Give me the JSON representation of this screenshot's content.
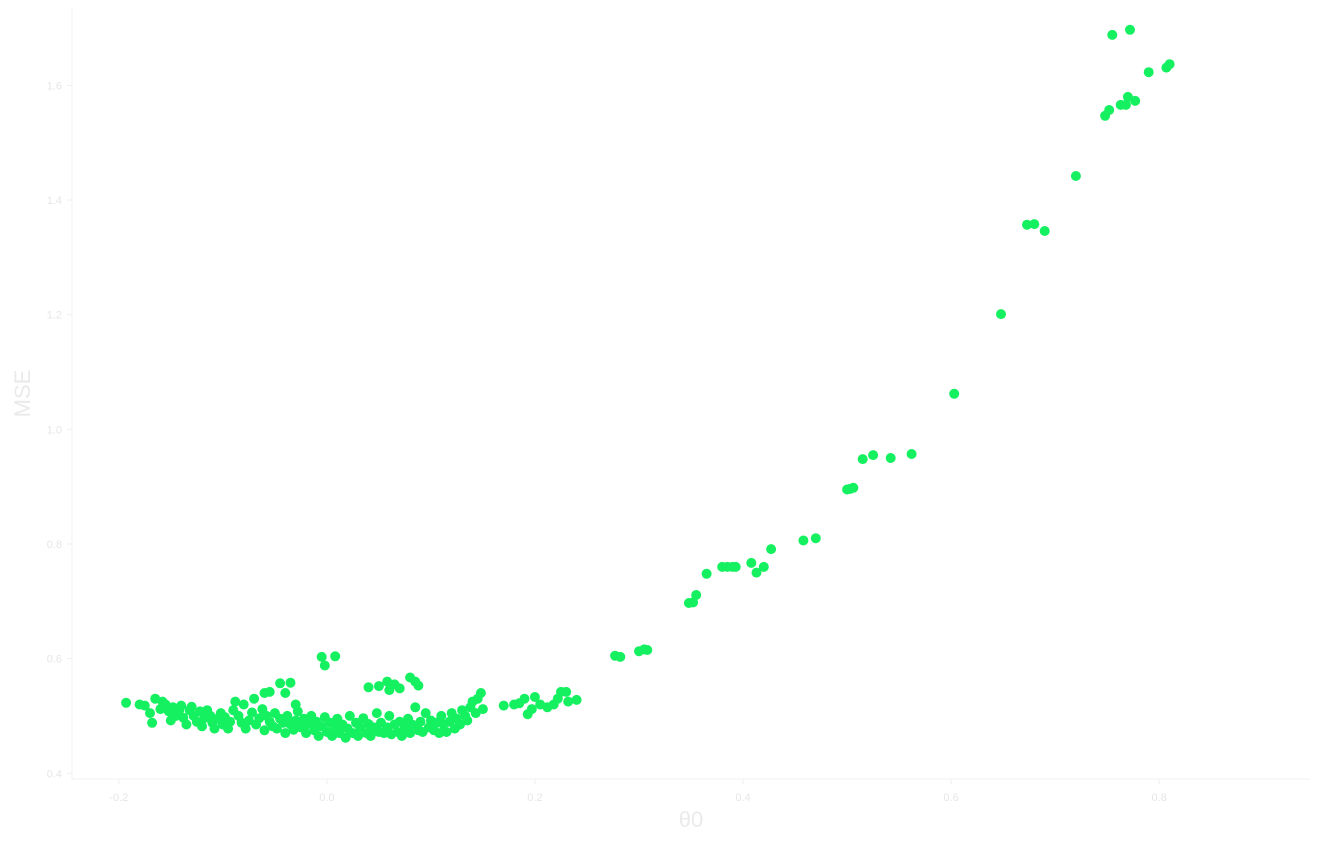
{
  "chart_data": {
    "type": "scatter",
    "title": "",
    "xlabel": "θ0",
    "ylabel": "MSE",
    "xlim": [
      -0.245,
      0.945
    ],
    "ylim": [
      0.39,
      1.735
    ],
    "xticks": [
      -0.2,
      0.0,
      0.2,
      0.4,
      0.6,
      0.8
    ],
    "xtick_labels": [
      "-0.2",
      "0.0",
      "0.2",
      "0.4",
      "0.6",
      "0.8"
    ],
    "yticks": [
      0.4,
      0.6,
      0.8,
      1.0,
      1.2,
      1.4,
      1.6
    ],
    "ytick_labels": [
      "0.4",
      "0.6",
      "0.8",
      "1.0",
      "1.2",
      "1.4",
      "1.6"
    ],
    "grid": false,
    "legend": "none",
    "colors": {
      "points": "#14f060",
      "axis": "#f2f2f2",
      "text": "#e6e6e6"
    },
    "series": [
      {
        "color": "#14f060",
        "points": [
          [
            -0.193,
            0.523
          ],
          [
            -0.18,
            0.52
          ],
          [
            -0.175,
            0.518
          ],
          [
            -0.17,
            0.505
          ],
          [
            -0.168,
            0.488
          ],
          [
            -0.165,
            0.53
          ],
          [
            -0.16,
            0.512
          ],
          [
            -0.158,
            0.525
          ],
          [
            -0.155,
            0.52
          ],
          [
            -0.152,
            0.508
          ],
          [
            -0.15,
            0.492
          ],
          [
            -0.148,
            0.515
          ],
          [
            -0.145,
            0.5
          ],
          [
            -0.142,
            0.51
          ],
          [
            -0.14,
            0.518
          ],
          [
            -0.138,
            0.497
          ],
          [
            -0.135,
            0.485
          ],
          [
            -0.132,
            0.51
          ],
          [
            -0.13,
            0.516
          ],
          [
            -0.128,
            0.5
          ],
          [
            -0.125,
            0.49
          ],
          [
            -0.122,
            0.508
          ],
          [
            -0.12,
            0.482
          ],
          [
            -0.118,
            0.496
          ],
          [
            -0.115,
            0.51
          ],
          [
            -0.112,
            0.5
          ],
          [
            -0.11,
            0.488
          ],
          [
            -0.108,
            0.478
          ],
          [
            -0.105,
            0.495
          ],
          [
            -0.102,
            0.505
          ],
          [
            -0.1,
            0.485
          ],
          [
            -0.098,
            0.498
          ],
          [
            -0.095,
            0.478
          ],
          [
            -0.093,
            0.49
          ],
          [
            -0.09,
            0.51
          ],
          [
            -0.088,
            0.525
          ],
          [
            -0.085,
            0.5
          ],
          [
            -0.082,
            0.488
          ],
          [
            -0.08,
            0.52
          ],
          [
            -0.078,
            0.478
          ],
          [
            -0.075,
            0.492
          ],
          [
            -0.072,
            0.506
          ],
          [
            -0.07,
            0.53
          ],
          [
            -0.068,
            0.485
          ],
          [
            -0.065,
            0.496
          ],
          [
            -0.062,
            0.512
          ],
          [
            -0.06,
            0.475
          ],
          [
            -0.058,
            0.5
          ],
          [
            -0.055,
            0.49
          ],
          [
            -0.052,
            0.482
          ],
          [
            -0.05,
            0.505
          ],
          [
            -0.048,
            0.478
          ],
          [
            -0.045,
            0.495
          ],
          [
            -0.042,
            0.488
          ],
          [
            -0.04,
            0.47
          ],
          [
            -0.038,
            0.5
          ],
          [
            -0.035,
            0.485
          ],
          [
            -0.032,
            0.476
          ],
          [
            -0.03,
            0.492
          ],
          [
            -0.028,
            0.508
          ],
          [
            -0.025,
            0.48
          ],
          [
            -0.022,
            0.495
          ],
          [
            -0.02,
            0.47
          ],
          [
            -0.018,
            0.486
          ],
          [
            -0.015,
            0.5
          ],
          [
            -0.012,
            0.475
          ],
          [
            -0.01,
            0.49
          ],
          [
            -0.008,
            0.465
          ],
          [
            -0.005,
            0.482
          ],
          [
            -0.002,
            0.498
          ],
          [
            0.0,
            0.472
          ],
          [
            0.003,
            0.488
          ],
          [
            0.005,
            0.465
          ],
          [
            0.008,
            0.48
          ],
          [
            0.01,
            0.495
          ],
          [
            0.012,
            0.47
          ],
          [
            0.015,
            0.485
          ],
          [
            0.018,
            0.462
          ],
          [
            0.02,
            0.478
          ],
          [
            0.022,
            0.5
          ],
          [
            0.025,
            0.47
          ],
          [
            0.028,
            0.488
          ],
          [
            0.03,
            0.465
          ],
          [
            0.032,
            0.48
          ],
          [
            0.035,
            0.496
          ],
          [
            0.038,
            0.47
          ],
          [
            0.04,
            0.486
          ],
          [
            0.042,
            0.465
          ],
          [
            0.045,
            0.48
          ],
          [
            0.048,
            0.505
          ],
          [
            0.05,
            0.472
          ],
          [
            0.052,
            0.488
          ],
          [
            0.055,
            0.47
          ],
          [
            0.058,
            0.48
          ],
          [
            0.06,
            0.5
          ],
          [
            0.062,
            0.468
          ],
          [
            0.065,
            0.485
          ],
          [
            0.068,
            0.472
          ],
          [
            0.07,
            0.49
          ],
          [
            0.072,
            0.465
          ],
          [
            0.075,
            0.48
          ],
          [
            0.078,
            0.495
          ],
          [
            0.08,
            0.47
          ],
          [
            0.082,
            0.485
          ],
          [
            0.085,
            0.515
          ],
          [
            0.088,
            0.475
          ],
          [
            0.09,
            0.49
          ],
          [
            0.092,
            0.472
          ],
          [
            0.095,
            0.505
          ],
          [
            0.098,
            0.48
          ],
          [
            0.1,
            0.492
          ],
          [
            0.103,
            0.475
          ],
          [
            0.105,
            0.488
          ],
          [
            0.108,
            0.47
          ],
          [
            0.11,
            0.5
          ],
          [
            0.112,
            0.485
          ],
          [
            0.115,
            0.472
          ],
          [
            0.118,
            0.49
          ],
          [
            0.12,
            0.505
          ],
          [
            0.123,
            0.478
          ],
          [
            0.125,
            0.495
          ],
          [
            0.128,
            0.485
          ],
          [
            0.13,
            0.51
          ],
          [
            0.133,
            0.5
          ],
          [
            0.135,
            0.492
          ],
          [
            0.138,
            0.515
          ],
          [
            0.14,
            0.525
          ],
          [
            0.143,
            0.505
          ],
          [
            0.145,
            0.53
          ],
          [
            0.148,
            0.54
          ],
          [
            0.15,
            0.512
          ],
          [
            -0.06,
            0.54
          ],
          [
            -0.055,
            0.542
          ],
          [
            -0.045,
            0.557
          ],
          [
            -0.04,
            0.54
          ],
          [
            -0.035,
            0.558
          ],
          [
            -0.03,
            0.52
          ],
          [
            -0.005,
            0.603
          ],
          [
            -0.002,
            0.588
          ],
          [
            0.008,
            0.604
          ],
          [
            0.04,
            0.55
          ],
          [
            0.05,
            0.552
          ],
          [
            0.058,
            0.56
          ],
          [
            0.06,
            0.545
          ],
          [
            0.065,
            0.555
          ],
          [
            0.07,
            0.548
          ],
          [
            0.08,
            0.567
          ],
          [
            0.085,
            0.56
          ],
          [
            0.088,
            0.553
          ],
          [
            0.17,
            0.518
          ],
          [
            0.18,
            0.52
          ],
          [
            0.185,
            0.522
          ],
          [
            0.19,
            0.53
          ],
          [
            0.193,
            0.503
          ],
          [
            0.197,
            0.512
          ],
          [
            0.2,
            0.533
          ],
          [
            0.205,
            0.52
          ],
          [
            0.212,
            0.515
          ],
          [
            0.218,
            0.52
          ],
          [
            0.222,
            0.53
          ],
          [
            0.225,
            0.542
          ],
          [
            0.23,
            0.542
          ],
          [
            0.232,
            0.525
          ],
          [
            0.24,
            0.528
          ],
          [
            0.277,
            0.605
          ],
          [
            0.282,
            0.603
          ],
          [
            0.3,
            0.613
          ],
          [
            0.305,
            0.616
          ],
          [
            0.308,
            0.615
          ],
          [
            0.348,
            0.697
          ],
          [
            0.352,
            0.698
          ],
          [
            0.355,
            0.711
          ],
          [
            0.365,
            0.748
          ],
          [
            0.38,
            0.76
          ],
          [
            0.385,
            0.76
          ],
          [
            0.39,
            0.76
          ],
          [
            0.393,
            0.76
          ],
          [
            0.408,
            0.767
          ],
          [
            0.413,
            0.75
          ],
          [
            0.42,
            0.76
          ],
          [
            0.427,
            0.791
          ],
          [
            0.458,
            0.806
          ],
          [
            0.47,
            0.81
          ],
          [
            0.5,
            0.895
          ],
          [
            0.503,
            0.896
          ],
          [
            0.506,
            0.898
          ],
          [
            0.515,
            0.948
          ],
          [
            0.525,
            0.955
          ],
          [
            0.542,
            0.95
          ],
          [
            0.562,
            0.957
          ],
          [
            0.603,
            1.062
          ],
          [
            0.648,
            1.201
          ],
          [
            0.673,
            1.357
          ],
          [
            0.68,
            1.358
          ],
          [
            0.69,
            1.346
          ],
          [
            0.72,
            1.442
          ],
          [
            0.748,
            1.547
          ],
          [
            0.752,
            1.557
          ],
          [
            0.755,
            1.688
          ],
          [
            0.763,
            1.566
          ],
          [
            0.768,
            1.566
          ],
          [
            0.77,
            1.58
          ],
          [
            0.772,
            1.697
          ],
          [
            0.777,
            1.573
          ],
          [
            0.79,
            1.623
          ],
          [
            0.807,
            1.631
          ],
          [
            0.81,
            1.637
          ]
        ]
      }
    ]
  }
}
